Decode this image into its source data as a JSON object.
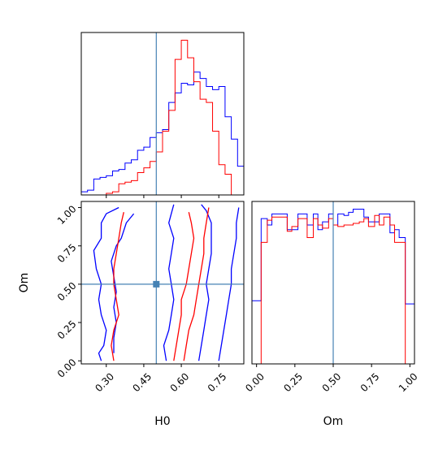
{
  "chart_data": {
    "type": "corner",
    "parameters": [
      "H0",
      "Om"
    ],
    "truth": {
      "H0": 0.5,
      "Om": 0.5
    },
    "colors": {
      "series_a": "#0000ff",
      "series_b": "#ff0000",
      "truth": "#4682b4"
    },
    "panels": [
      {
        "id": "hist-H0",
        "type": "step-histogram",
        "xlim": [
          0.2,
          0.85
        ],
        "x_ticks_shown": false,
        "y_ticks_shown": false,
        "bin_edges": [
          0.2,
          0.225,
          0.25,
          0.275,
          0.3,
          0.325,
          0.35,
          0.375,
          0.4,
          0.425,
          0.45,
          0.475,
          0.5,
          0.525,
          0.55,
          0.575,
          0.6,
          0.625,
          0.65,
          0.675,
          0.7,
          0.725,
          0.75,
          0.775,
          0.8,
          0.825,
          0.85
        ],
        "series": [
          {
            "color": "blue",
            "counts": [
              2,
              3,
              10,
              11,
              12,
              15,
              16,
              20,
              22,
              28,
              30,
              36,
              39,
              41,
              58,
              64,
              70,
              69,
              77,
              73,
              68,
              66,
              68,
              49,
              35,
              18
            ]
          },
          {
            "color": "red",
            "counts": [
              0,
              0,
              0,
              0,
              1,
              2,
              7,
              8,
              9,
              14,
              17,
              21,
              27,
              40,
              53,
              85,
              97,
              86,
              71,
              60,
              58,
              40,
              19,
              13,
              0,
              0
            ]
          }
        ]
      },
      {
        "id": "contour-H0-Om",
        "type": "contour",
        "xlabel": "H0",
        "ylabel": "Om",
        "xlim": [
          0.2,
          0.85
        ],
        "ylim": [
          -0.02,
          1.04
        ],
        "xticks": [
          "0.30",
          "0.45",
          "0.60",
          "0.75"
        ],
        "xtick_values": [
          0.3,
          0.45,
          0.6,
          0.75
        ],
        "yticks": [
          "0.00",
          "0.25",
          "0.50",
          "0.75",
          "1.00"
        ],
        "ytick_values": [
          0.0,
          0.25,
          0.5,
          0.75,
          1.0
        ],
        "contours": [
          {
            "color": "blue",
            "points": [
              [
                0.28,
                0.0
              ],
              [
                0.27,
                0.05
              ],
              [
                0.29,
                0.1
              ],
              [
                0.3,
                0.2
              ],
              [
                0.28,
                0.3
              ],
              [
                0.27,
                0.4
              ],
              [
                0.28,
                0.5
              ],
              [
                0.26,
                0.6
              ],
              [
                0.25,
                0.72
              ],
              [
                0.28,
                0.8
              ],
              [
                0.28,
                0.9
              ],
              [
                0.3,
                0.96
              ],
              [
                0.35,
                1.0
              ]
            ]
          },
          {
            "color": "blue",
            "points": [
              [
                0.33,
                0.05
              ],
              [
                0.33,
                0.15
              ],
              [
                0.34,
                0.25
              ],
              [
                0.33,
                0.35
              ],
              [
                0.34,
                0.45
              ],
              [
                0.33,
                0.55
              ],
              [
                0.32,
                0.65
              ],
              [
                0.34,
                0.75
              ],
              [
                0.36,
                0.8
              ],
              [
                0.38,
                0.9
              ],
              [
                0.41,
                0.96
              ]
            ]
          },
          {
            "color": "blue",
            "points": [
              [
                0.54,
                0.0
              ],
              [
                0.53,
                0.1
              ],
              [
                0.55,
                0.2
              ],
              [
                0.56,
                0.3
              ],
              [
                0.57,
                0.4
              ],
              [
                0.56,
                0.5
              ],
              [
                0.55,
                0.6
              ],
              [
                0.56,
                0.7
              ],
              [
                0.57,
                0.8
              ],
              [
                0.55,
                0.9
              ],
              [
                0.57,
                1.02
              ]
            ]
          },
          {
            "color": "blue",
            "points": [
              [
                0.67,
                0.0
              ],
              [
                0.68,
                0.1
              ],
              [
                0.69,
                0.2
              ],
              [
                0.7,
                0.3
              ],
              [
                0.71,
                0.4
              ],
              [
                0.7,
                0.5
              ],
              [
                0.71,
                0.6
              ],
              [
                0.72,
                0.7
              ],
              [
                0.72,
                0.8
              ],
              [
                0.72,
                0.9
              ],
              [
                0.7,
                0.98
              ],
              [
                0.68,
                1.02
              ]
            ]
          },
          {
            "color": "blue",
            "points": [
              [
                0.75,
                0.0
              ],
              [
                0.76,
                0.1
              ],
              [
                0.77,
                0.2
              ],
              [
                0.78,
                0.3
              ],
              [
                0.79,
                0.4
              ],
              [
                0.8,
                0.5
              ],
              [
                0.8,
                0.6
              ],
              [
                0.81,
                0.7
              ],
              [
                0.82,
                0.8
              ],
              [
                0.82,
                0.9
              ],
              [
                0.83,
                1.0
              ]
            ]
          },
          {
            "color": "red",
            "points": [
              [
                0.33,
                0.0
              ],
              [
                0.32,
                0.1
              ],
              [
                0.33,
                0.2
              ],
              [
                0.35,
                0.3
              ],
              [
                0.34,
                0.4
              ],
              [
                0.33,
                0.5
              ],
              [
                0.33,
                0.6
              ],
              [
                0.34,
                0.7
              ],
              [
                0.35,
                0.8
              ],
              [
                0.36,
                0.9
              ],
              [
                0.37,
                0.97
              ]
            ]
          },
          {
            "color": "red",
            "points": [
              [
                0.61,
                0.0
              ],
              [
                0.62,
                0.1
              ],
              [
                0.63,
                0.2
              ],
              [
                0.65,
                0.3
              ],
              [
                0.66,
                0.4
              ],
              [
                0.67,
                0.5
              ],
              [
                0.68,
                0.6
              ],
              [
                0.69,
                0.7
              ],
              [
                0.69,
                0.8
              ],
              [
                0.7,
                0.9
              ],
              [
                0.71,
                1.0
              ]
            ]
          },
          {
            "color": "red",
            "points": [
              [
                0.57,
                0.0
              ],
              [
                0.58,
                0.1
              ],
              [
                0.59,
                0.2
              ],
              [
                0.6,
                0.3
              ],
              [
                0.6,
                0.4
              ],
              [
                0.62,
                0.5
              ],
              [
                0.63,
                0.6
              ],
              [
                0.64,
                0.7
              ],
              [
                0.65,
                0.8
              ],
              [
                0.64,
                0.9
              ],
              [
                0.63,
                0.97
              ]
            ]
          }
        ]
      },
      {
        "id": "hist-Om",
        "type": "step-histogram",
        "xlabel": "Om",
        "xlim": [
          -0.03,
          1.03
        ],
        "xticks": [
          "0.00",
          "0.25",
          "0.50",
          "0.75",
          "1.00"
        ],
        "xtick_values": [
          0.0,
          0.25,
          0.5,
          0.75,
          1.0
        ],
        "y_ticks_shown": false,
        "bin_edges": [
          -0.03,
          0.0,
          0.03,
          0.07,
          0.1,
          0.13,
          0.17,
          0.2,
          0.23,
          0.27,
          0.3,
          0.33,
          0.37,
          0.4,
          0.43,
          0.47,
          0.5,
          0.53,
          0.57,
          0.6,
          0.63,
          0.67,
          0.7,
          0.73,
          0.77,
          0.8,
          0.83,
          0.87,
          0.9,
          0.93,
          0.97,
          1.0,
          1.03
        ],
        "series": [
          {
            "color": "blue",
            "counts": [
              40,
              40,
              92,
              88,
              95,
              95,
              95,
              85,
              85,
              95,
              95,
              88,
              95,
              85,
              90,
              95,
              88,
              95,
              94,
              96,
              98,
              98,
              93,
              90,
              90,
              95,
              95,
              83,
              85,
              80,
              38,
              38
            ]
          },
          {
            "color": "red",
            "counts": [
              0,
              0,
              77,
              91,
              93,
              93,
              93,
              84,
              87,
              92,
              92,
              80,
              92,
              88,
              86,
              92,
              88,
              87,
              88,
              88,
              89,
              90,
              92,
              87,
              94,
              88,
              93,
              88,
              77,
              77,
              0,
              0
            ]
          }
        ]
      }
    ]
  }
}
